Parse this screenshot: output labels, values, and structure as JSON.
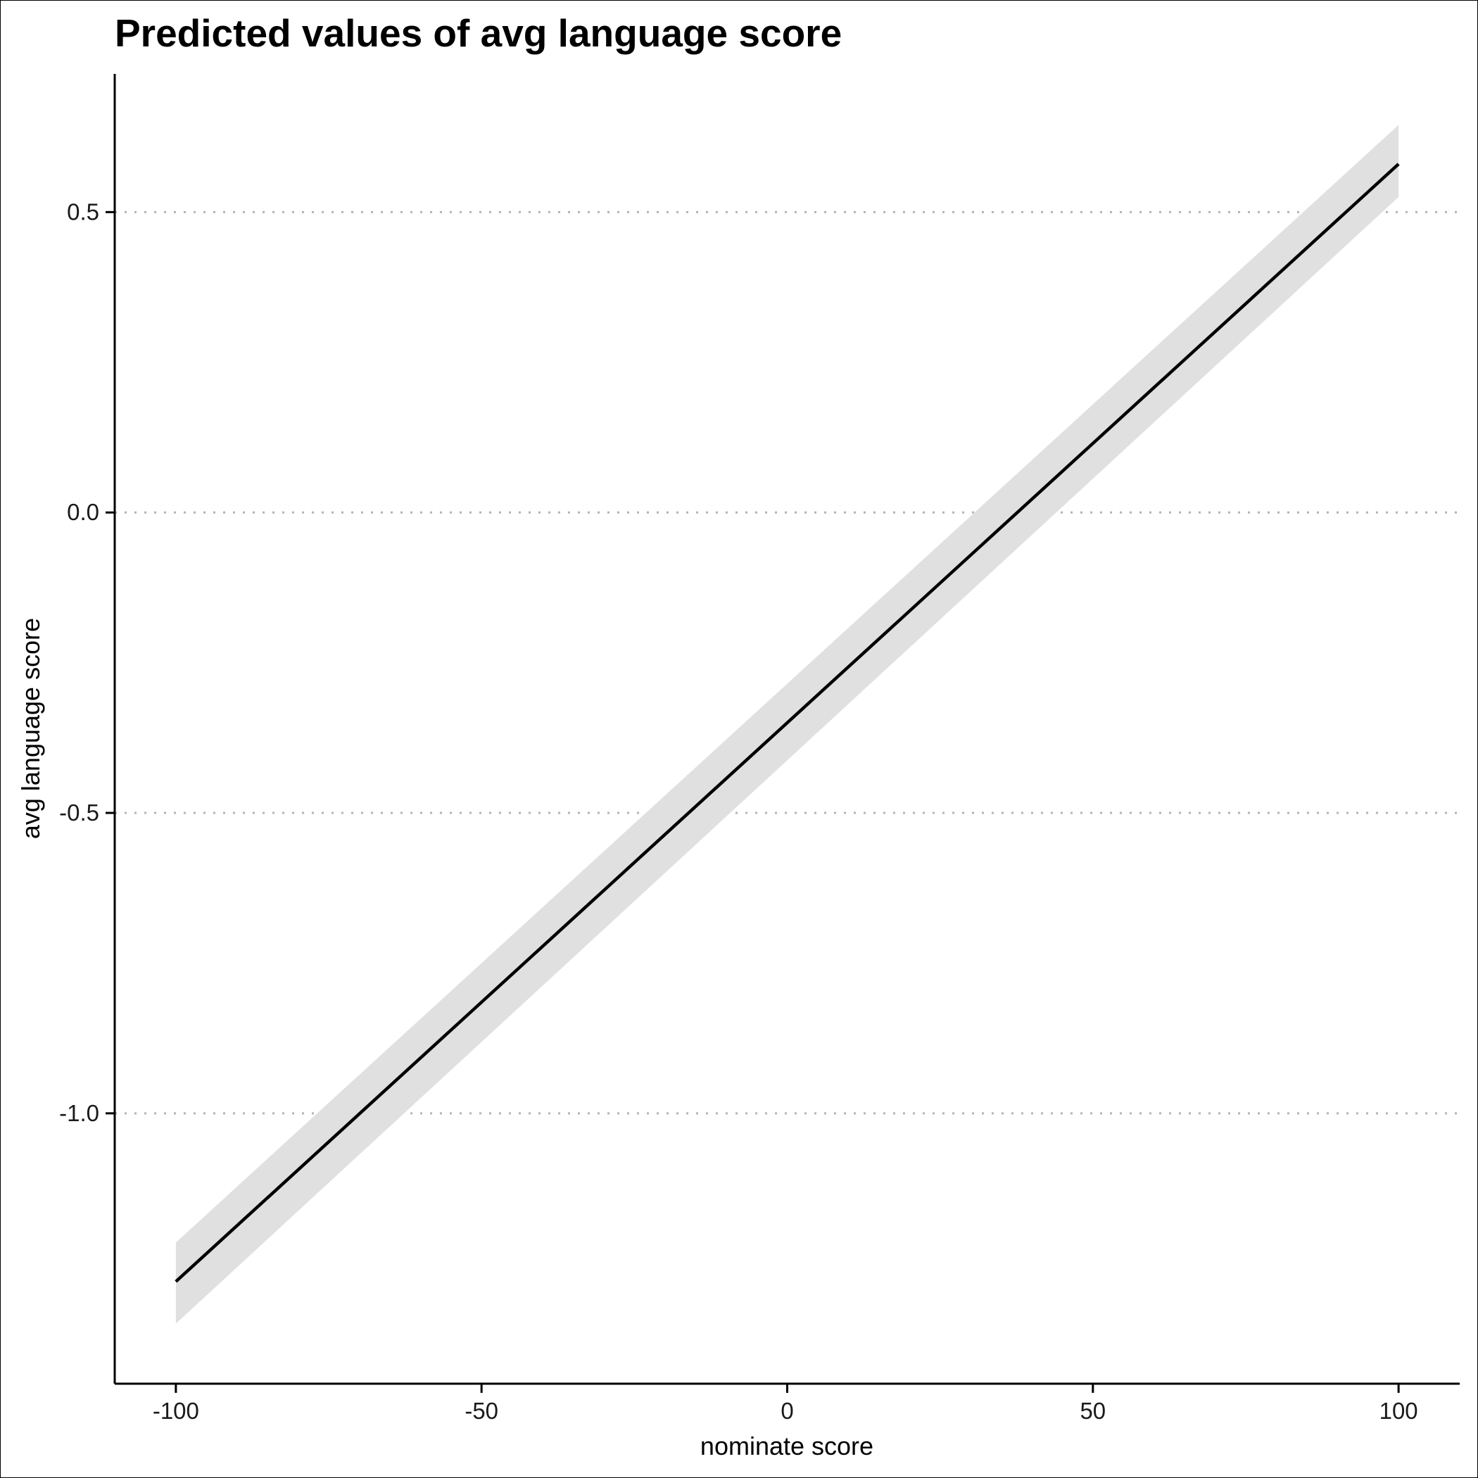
{
  "chart_data": {
    "type": "line",
    "title": "Predicted values of avg language score",
    "xlabel": "nominate score",
    "ylabel": "avg language score",
    "xlim": [
      -110,
      110
    ],
    "ylim": [
      -1.45,
      0.73
    ],
    "x_ticks": [
      -100,
      -50,
      0,
      50,
      100
    ],
    "x_tick_labels": [
      "-100",
      "-50",
      "0",
      "50",
      "100"
    ],
    "y_ticks": [
      -1.0,
      -0.5,
      0.0,
      0.5
    ],
    "y_tick_labels": [
      "-1.0",
      "-0.5",
      "0.0",
      "0.5"
    ],
    "grid": "horizontal dotted",
    "series": [
      {
        "x": [
          -100,
          100
        ],
        "y": [
          -1.28,
          0.58
        ],
        "ci_low": [
          -1.35,
          0.525
        ],
        "ci_high": [
          -1.215,
          0.645
        ],
        "color": "#000000",
        "ci_color": "#e0e0e0"
      }
    ]
  }
}
